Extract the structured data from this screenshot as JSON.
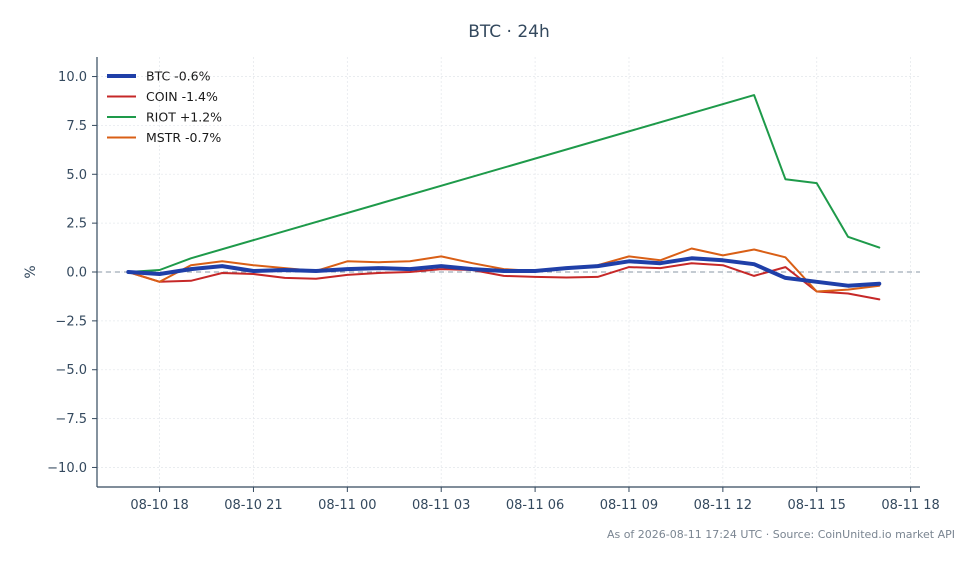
{
  "chart_data": {
    "type": "line",
    "title": "BTC · 24h",
    "xlabel": "",
    "ylabel": "%",
    "x_ticks": [
      "08-10 18",
      "08-10 21",
      "08-11 00",
      "08-11 03",
      "08-11 06",
      "08-11 09",
      "08-11 12",
      "08-11 15",
      "08-11 18"
    ],
    "y_ticks": [
      "10.0",
      "7.5",
      "5.0",
      "2.5",
      "0.0",
      "−2.5",
      "−5.0",
      "−7.5",
      "−10.0"
    ],
    "ylim": [
      -11,
      11
    ],
    "xlim_hours": [
      -2.0,
      24.3
    ],
    "zero_line": true,
    "grid": true,
    "legend_position": "top-left",
    "x_hours": [
      -1,
      0,
      1,
      2,
      3,
      4,
      5,
      6,
      7,
      8,
      9,
      10,
      11,
      12,
      13,
      14,
      15,
      16,
      17,
      18,
      19,
      20,
      21,
      22,
      23
    ],
    "series": [
      {
        "name": "BTC -0.6%",
        "color": "#1f3fa8",
        "width": 4,
        "values": [
          0.0,
          -0.1,
          0.15,
          0.3,
          0.05,
          0.1,
          0.05,
          0.15,
          0.2,
          0.15,
          0.3,
          0.15,
          0.05,
          0.05,
          0.2,
          0.3,
          0.55,
          0.45,
          0.7,
          0.6,
          0.4,
          -0.3,
          -0.5,
          -0.7,
          -0.6
        ]
      },
      {
        "name": "COIN -1.4%",
        "color": "#c62828",
        "width": 2,
        "values": [
          0.0,
          -0.5,
          -0.45,
          -0.05,
          -0.1,
          -0.3,
          -0.35,
          -0.15,
          -0.05,
          0.0,
          0.15,
          0.1,
          -0.2,
          -0.25,
          -0.28,
          -0.25,
          0.25,
          0.2,
          0.45,
          0.35,
          -0.2,
          0.25,
          -1.0,
          -1.1,
          -1.4
        ]
      },
      {
        "name": "RIOT +1.2%",
        "color": "#1e9a4a",
        "width": 2,
        "x_hours": [
          -1,
          0,
          1,
          19,
          20,
          21,
          22,
          23
        ],
        "values": [
          0.0,
          0.1,
          0.7,
          9.05,
          4.75,
          4.55,
          1.8,
          1.25
        ]
      },
      {
        "name": "MSTR -0.7%",
        "color": "#d95f16",
        "width": 2,
        "values": [
          0.0,
          -0.5,
          0.35,
          0.55,
          0.35,
          0.2,
          0.05,
          0.55,
          0.5,
          0.55,
          0.8,
          0.45,
          0.15,
          0.05,
          0.2,
          0.35,
          0.8,
          0.6,
          1.2,
          0.85,
          1.15,
          0.75,
          -1.0,
          -0.9,
          -0.7
        ]
      }
    ],
    "footer": "As of 2026-08-11 17:24 UTC · Source: CoinUnited.io market API"
  }
}
